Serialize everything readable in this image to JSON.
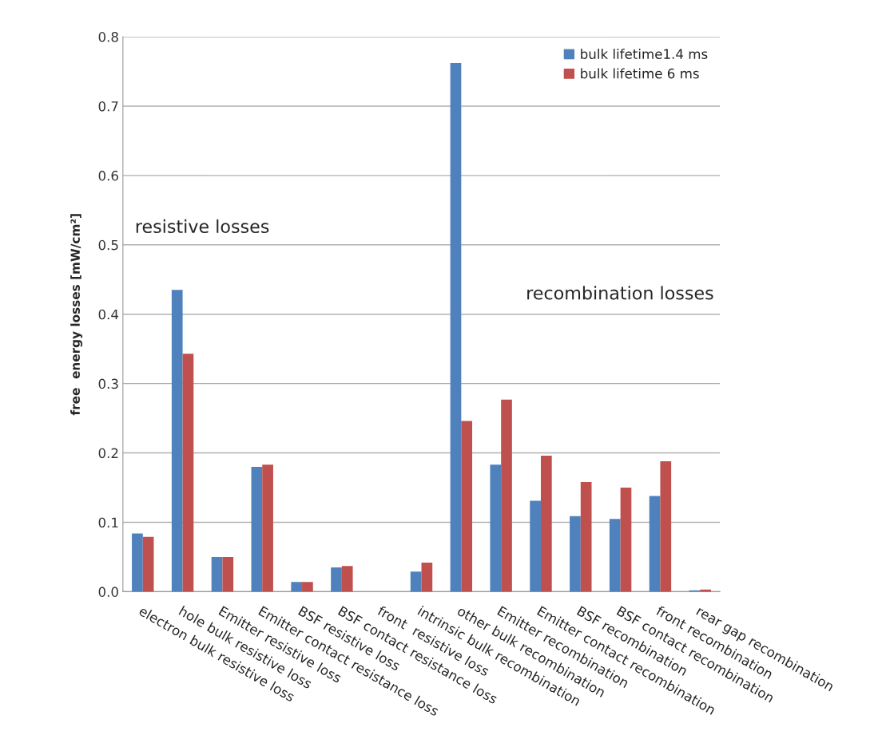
{
  "chart_data": {
    "type": "bar",
    "ylabel": "free  energy losses [mW/cm²]",
    "categories": [
      "electron bulk resistive loss",
      "hole bulk resistive loss",
      "Emitter resistive loss",
      "Emitter contact resistance loss",
      "BSF resistive loss",
      "BSF contact resistance loss",
      "front  resistive loss",
      "intrinsic bulk recombination",
      "other bulk recombination",
      "Emitter recombination",
      "Emitter contact recombination",
      "BSF recombination",
      "BSF contact recombination",
      "front recombination",
      "rear gap recombination"
    ],
    "series": [
      {
        "name": "bulk lifetime1.4 ms",
        "color": "#4f81bd",
        "values": [
          0.084,
          0.435,
          0.05,
          0.18,
          0.014,
          0.035,
          null,
          0.029,
          0.762,
          0.183,
          0.131,
          0.109,
          0.105,
          0.138,
          0.002
        ]
      },
      {
        "name": "bulk lifetime 6 ms",
        "color": "#c0504d",
        "values": [
          0.079,
          0.343,
          0.05,
          0.183,
          0.014,
          0.037,
          null,
          0.042,
          0.246,
          0.277,
          0.196,
          0.158,
          0.15,
          0.188,
          0.003
        ]
      }
    ],
    "ylim": [
      0,
      0.8
    ],
    "yticks": [
      {
        "value": 0,
        "label": "0.0"
      },
      0.1,
      0.2,
      0.3,
      0.4,
      0.5,
      0.6,
      0.7,
      0.8
    ],
    "grid": "y",
    "legend": "top right",
    "annotations": [
      "resistive losses",
      "recombination losses"
    ]
  }
}
